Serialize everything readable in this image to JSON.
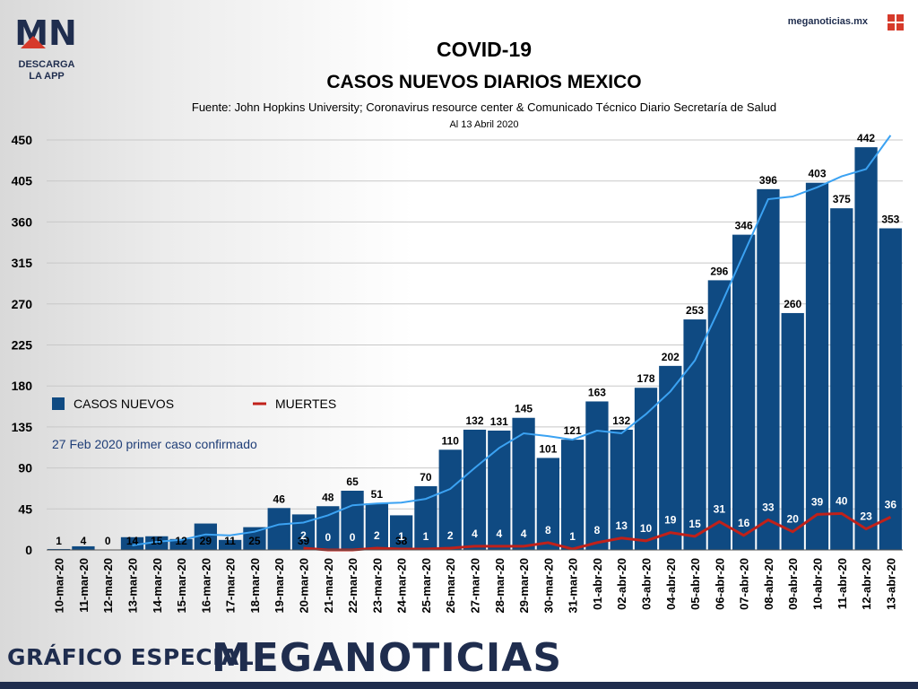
{
  "brand": {
    "logo_letters": "MN",
    "logo_caption_line1": "DESCARGA",
    "logo_caption_line2": "LA APP",
    "url": "meganoticias.mx"
  },
  "header": {
    "title": "COVID-19",
    "subtitle": "CASOS NUEVOS DIARIOS MEXICO",
    "source": "Fuente: John Hopkins University; Coronavirus resource center & Comunicado Técnico Diario Secretaría de Salud",
    "date": "Al 13 Abril 2020"
  },
  "footer": {
    "left": "GRÁFICO ESPECIAL",
    "right": "MEGANOTICIAS"
  },
  "colors": {
    "bars": "#0f4a82",
    "trend_line": "#3ba2f2",
    "deaths_line": "#c0211a",
    "brand_navy": "#1f2d4e",
    "brand_red": "#d63a2b"
  },
  "chart_data": {
    "type": "bar",
    "categories": [
      "10-mar-20",
      "11-mar-20",
      "12-mar-20",
      "13-mar-20",
      "14-mar-20",
      "15-mar-20",
      "16-mar-20",
      "17-mar-20",
      "18-mar-20",
      "19-mar-20",
      "20-mar-20",
      "21-mar-20",
      "22-mar-20",
      "23-mar-20",
      "24-mar-20",
      "25-mar-20",
      "26-mar-20",
      "27-mar-20",
      "28-mar-20",
      "29-mar-20",
      "30-mar-20",
      "31-mar-20",
      "01-abr-20",
      "02-abr-20",
      "03-abr-20",
      "04-abr-20",
      "05-abr-20",
      "06-abr-20",
      "07-abr-20",
      "08-abr-20",
      "09-abr-20",
      "10-abr-20",
      "11-abr-20",
      "12-abr-20",
      "13-abr-20"
    ],
    "series": [
      {
        "name": "CASOS NUEVOS",
        "kind": "bar",
        "values": [
          1,
          4,
          0,
          14,
          15,
          12,
          29,
          11,
          25,
          46,
          39,
          48,
          65,
          51,
          38,
          70,
          110,
          132,
          131,
          145,
          101,
          121,
          163,
          132,
          178,
          202,
          253,
          296,
          346,
          396,
          260,
          403,
          375,
          442,
          353
        ]
      },
      {
        "name": "MUERTES",
        "kind": "line",
        "values": [
          null,
          null,
          null,
          null,
          null,
          null,
          null,
          null,
          null,
          null,
          2,
          0,
          0,
          2,
          1,
          1,
          2,
          4,
          4,
          4,
          8,
          1,
          8,
          13,
          10,
          19,
          15,
          31,
          16,
          33,
          20,
          39,
          40,
          23,
          36
        ]
      },
      {
        "kind": "trend-line",
        "values": [
          null,
          null,
          null,
          5,
          9,
          11,
          17,
          16,
          20,
          28,
          30,
          38,
          49,
          51,
          52,
          56,
          67,
          90,
          112,
          128,
          125,
          121,
          131,
          128,
          149,
          174,
          208,
          265,
          325,
          385,
          388,
          398,
          410,
          418,
          455
        ]
      }
    ],
    "ylim": [
      0,
      450
    ],
    "yticks": [
      0,
      45,
      90,
      135,
      180,
      225,
      270,
      315,
      360,
      405,
      450
    ],
    "legend": [
      {
        "label": "CASOS NUEVOS",
        "marker": "square"
      },
      {
        "label": "MUERTES",
        "marker": "line"
      }
    ],
    "legend_position": "middle-left",
    "annotation": "27 Feb 2020 primer caso confirmado",
    "grid": true
  }
}
